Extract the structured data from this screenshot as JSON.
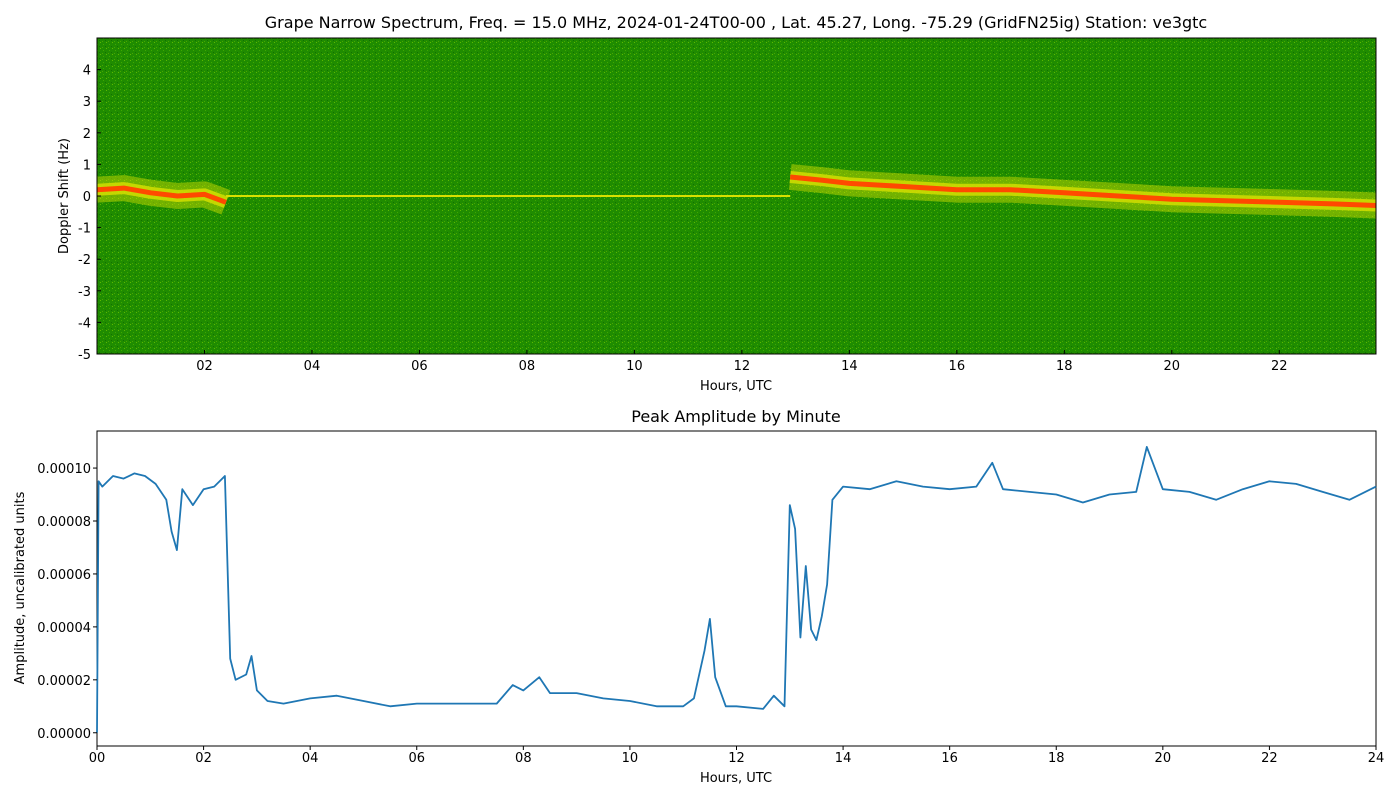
{
  "chart_data": [
    {
      "type": "heatmap",
      "title": "Grape Narrow Spectrum, Freq. = 15.0 MHz, 2024-01-24T00-00 , Lat.  45.27, Long. -75.29 (GridFN25ig) Station: ve3gtc",
      "xlabel": "Hours, UTC",
      "ylabel": "Doppler Shift (Hz)",
      "xlim": [
        0,
        23.8
      ],
      "ylim": [
        -5,
        5
      ],
      "xticks": [
        "02",
        "04",
        "06",
        "08",
        "10",
        "12",
        "14",
        "16",
        "18",
        "20",
        "22"
      ],
      "xtick_values": [
        2,
        4,
        6,
        8,
        10,
        12,
        14,
        16,
        18,
        20,
        22
      ],
      "yticks": [
        "-5",
        "-4",
        "-3",
        "-2",
        "-1",
        "0",
        "1",
        "2",
        "3",
        "4"
      ],
      "ytick_values": [
        -5,
        -4,
        -3,
        -2,
        -1,
        0,
        1,
        2,
        3,
        4
      ],
      "colors": {
        "background": "#1f8c00",
        "mid": "#d8e000",
        "peak": "#ff4a00"
      },
      "doppler_trace": {
        "x": [
          0,
          0.5,
          1,
          1.5,
          2,
          2.4,
          12.9,
          13.5,
          14,
          15,
          16,
          17,
          18,
          19,
          20,
          21,
          22,
          23,
          23.8
        ],
        "y": [
          0.2,
          0.25,
          0.1,
          0.0,
          0.05,
          -0.2,
          0.6,
          0.5,
          0.4,
          0.3,
          0.2,
          0.2,
          0.1,
          0.0,
          -0.1,
          -0.15,
          -0.2,
          -0.25,
          -0.3
        ]
      },
      "carrier_line": {
        "x_start": 2.4,
        "x_end": 12.9,
        "y": 0
      },
      "grid": false
    },
    {
      "type": "line",
      "title": "Peak Amplitude by Minute",
      "xlabel": "Hours, UTC",
      "ylabel": "Amplitude, uncalibrated units",
      "xlim": [
        0,
        24
      ],
      "ylim": [
        -5e-06,
        0.000114
      ],
      "xticks": [
        "00",
        "02",
        "04",
        "06",
        "08",
        "10",
        "12",
        "14",
        "16",
        "18",
        "20",
        "22",
        "24"
      ],
      "xtick_values": [
        0,
        2,
        4,
        6,
        8,
        10,
        12,
        14,
        16,
        18,
        20,
        22,
        24
      ],
      "yticks": [
        "0.00000",
        "0.00002",
        "0.00004",
        "0.00006",
        "0.00008",
        "0.00010"
      ],
      "ytick_values": [
        0,
        2e-05,
        4e-05,
        6e-05,
        8e-05,
        0.0001
      ],
      "line_color": "#1f77b4",
      "series": [
        {
          "x": [
            0,
            0.03,
            0.1,
            0.3,
            0.5,
            0.7,
            0.9,
            1.1,
            1.3,
            1.4,
            1.5,
            1.6,
            1.8,
            2.0,
            2.2,
            2.4,
            2.5,
            2.6,
            2.8,
            2.9,
            3.0,
            3.2,
            3.5,
            4.0,
            4.5,
            5.0,
            5.5,
            6.0,
            6.5,
            7.0,
            7.5,
            7.8,
            8.0,
            8.3,
            8.5,
            9.0,
            9.5,
            10.0,
            10.5,
            11.0,
            11.2,
            11.4,
            11.5,
            11.6,
            11.8,
            12.0,
            12.5,
            12.7,
            12.9,
            13.0,
            13.1,
            13.2,
            13.3,
            13.4,
            13.5,
            13.6,
            13.7,
            13.8,
            14.0,
            14.5,
            15.0,
            15.5,
            16.0,
            16.5,
            16.8,
            17.0,
            17.5,
            18.0,
            18.5,
            19.0,
            19.5,
            19.7,
            20.0,
            20.5,
            21.0,
            21.5,
            22.0,
            22.5,
            23.0,
            23.5,
            24.0
          ],
          "values": [
            0.0,
            9.5e-05,
            9.3e-05,
            9.7e-05,
            9.6e-05,
            9.8e-05,
            9.7e-05,
            9.4e-05,
            8.8e-05,
            7.6e-05,
            6.9e-05,
            9.2e-05,
            8.6e-05,
            9.2e-05,
            9.3e-05,
            9.7e-05,
            2.8e-05,
            2e-05,
            2.2e-05,
            2.9e-05,
            1.6e-05,
            1.2e-05,
            1.1e-05,
            1.3e-05,
            1.4e-05,
            1.2e-05,
            1e-05,
            1.1e-05,
            1.1e-05,
            1.1e-05,
            1.1e-05,
            1.8e-05,
            1.6e-05,
            2.1e-05,
            1.5e-05,
            1.5e-05,
            1.3e-05,
            1.2e-05,
            1e-05,
            1e-05,
            1.3e-05,
            3.1e-05,
            4.3e-05,
            2.1e-05,
            1e-05,
            1e-05,
            9e-06,
            1.4e-05,
            1e-05,
            8.6e-05,
            7.7e-05,
            3.6e-05,
            6.3e-05,
            3.9e-05,
            3.5e-05,
            4.4e-05,
            5.6e-05,
            8.8e-05,
            9.3e-05,
            9.2e-05,
            9.5e-05,
            9.3e-05,
            9.2e-05,
            9.3e-05,
            0.000102,
            9.2e-05,
            9.1e-05,
            9e-05,
            8.7e-05,
            9e-05,
            9.1e-05,
            0.000108,
            9.2e-05,
            9.1e-05,
            8.8e-05,
            9.2e-05,
            9.5e-05,
            9.4e-05,
            9.1e-05,
            8.8e-05,
            9.3e-05
          ]
        }
      ],
      "grid": false
    }
  ]
}
